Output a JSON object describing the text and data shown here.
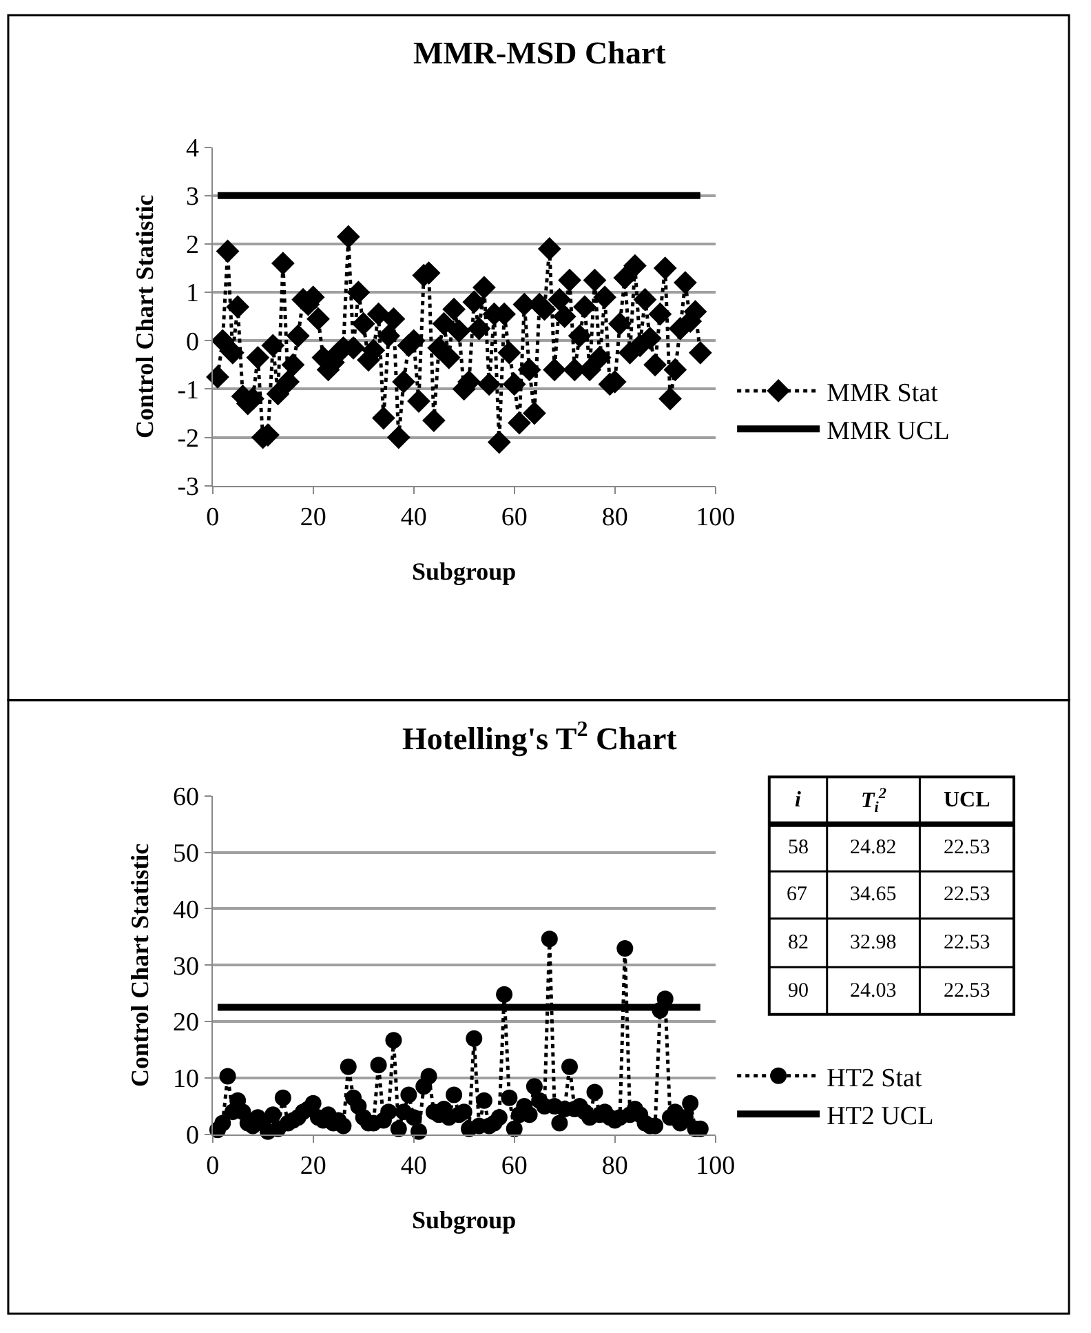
{
  "chart_data": [
    {
      "type": "line",
      "title": "MMR-MSD Chart",
      "xlabel": "Subgroup",
      "ylabel": "Control Chart Statistic",
      "xlim": [
        0,
        100
      ],
      "xticks": [
        0,
        20,
        40,
        60,
        80,
        100
      ],
      "ylim": [
        -3,
        4
      ],
      "yticks": [
        -3,
        -2,
        -1,
        0,
        1,
        2,
        3,
        4
      ],
      "grid": "y",
      "legend": "right",
      "series": [
        {
          "name": "MMR Stat",
          "color": "#000000",
          "marker": "diamond",
          "line_style": "dotted",
          "x": [
            1,
            2,
            3,
            4,
            5,
            6,
            7,
            8,
            9,
            10,
            11,
            12,
            13,
            14,
            15,
            16,
            17,
            18,
            19,
            20,
            21,
            22,
            23,
            24,
            25,
            26,
            27,
            28,
            29,
            30,
            31,
            32,
            33,
            34,
            35,
            36,
            37,
            38,
            39,
            40,
            41,
            42,
            43,
            44,
            45,
            46,
            47,
            48,
            49,
            50,
            51,
            52,
            53,
            54,
            55,
            56,
            57,
            58,
            59,
            60,
            61,
            62,
            63,
            64,
            65,
            66,
            67,
            68,
            69,
            70,
            71,
            72,
            73,
            74,
            75,
            76,
            77,
            78,
            79,
            80,
            81,
            82,
            83,
            84,
            85,
            86,
            87,
            88,
            89,
            90,
            91,
            92,
            93,
            94,
            95,
            96,
            97
          ],
          "values": [
            -0.75,
            0.0,
            1.85,
            -0.25,
            0.7,
            -1.15,
            -1.3,
            -1.2,
            -0.35,
            -2.0,
            -1.95,
            -0.1,
            -1.1,
            1.6,
            -0.85,
            -0.5,
            0.1,
            0.85,
            0.75,
            0.9,
            0.45,
            -0.35,
            -0.6,
            -0.45,
            -0.25,
            -0.15,
            2.15,
            -0.15,
            1.0,
            0.35,
            -0.4,
            -0.2,
            0.55,
            -1.6,
            0.1,
            0.45,
            -2.0,
            -0.85,
            -0.1,
            0.0,
            -1.25,
            1.35,
            1.4,
            -1.65,
            -0.15,
            0.35,
            -0.35,
            0.65,
            0.2,
            -1.0,
            -0.85,
            0.8,
            0.25,
            1.1,
            -0.9,
            0.55,
            -2.1,
            0.55,
            -0.25,
            -0.9,
            -1.7,
            0.75,
            -0.6,
            -1.5,
            0.75,
            0.65,
            1.9,
            -0.6,
            0.85,
            0.5,
            1.25,
            -0.6,
            0.1,
            0.7,
            -0.6,
            1.25,
            -0.35,
            0.9,
            -0.9,
            -0.85,
            0.35,
            1.3,
            -0.25,
            1.55,
            -0.1,
            0.85,
            0.05,
            -0.5,
            0.55,
            1.5,
            -1.2,
            -0.6,
            0.25,
            1.2,
            0.4,
            0.6,
            -0.25
          ]
        },
        {
          "name": "MMR UCL",
          "color": "#000000",
          "marker": "none",
          "line_style": "solid",
          "x": [
            1,
            97
          ],
          "values": [
            3,
            3
          ]
        }
      ]
    },
    {
      "type": "line",
      "title": "Hotelling's T$^{2}$ Chart",
      "xlabel": "Subgroup",
      "ylabel": "Control Chart Statistic",
      "xlim": [
        0,
        100
      ],
      "xticks": [
        0,
        20,
        40,
        60,
        80,
        100
      ],
      "ylim": [
        0,
        60
      ],
      "yticks": [
        0,
        10,
        20,
        30,
        40,
        50,
        60
      ],
      "grid": "y",
      "legend": "right",
      "annotations": [
        "i",
        "T$_{i}$$^{2}$",
        "UCL",
        "58",
        "24.82",
        "22.53",
        "67",
        "34.65",
        "22.53",
        "82",
        "32.98",
        "22.53",
        "90",
        "24.03",
        "22.53"
      ],
      "series": [
        {
          "name": "HT2 Stat",
          "color": "#000000",
          "marker": "circle",
          "line_style": "dotted",
          "x": [
            1,
            2,
            3,
            4,
            5,
            6,
            7,
            8,
            9,
            10,
            11,
            12,
            13,
            14,
            15,
            16,
            17,
            18,
            19,
            20,
            21,
            22,
            23,
            24,
            25,
            26,
            27,
            28,
            29,
            30,
            31,
            32,
            33,
            34,
            35,
            36,
            37,
            38,
            39,
            40,
            41,
            42,
            43,
            44,
            45,
            46,
            47,
            48,
            49,
            50,
            51,
            52,
            53,
            54,
            55,
            56,
            57,
            58,
            59,
            60,
            61,
            62,
            63,
            64,
            65,
            66,
            67,
            68,
            69,
            70,
            71,
            72,
            73,
            74,
            75,
            76,
            77,
            78,
            79,
            80,
            81,
            82,
            83,
            84,
            85,
            86,
            87,
            88,
            89,
            90,
            91,
            92,
            93,
            94,
            95,
            96,
            97
          ],
          "values": [
            0.8,
            2,
            10.3,
            4,
            6,
            4,
            2,
            1.5,
            3,
            2,
            0.5,
            3.5,
            1,
            6.5,
            2,
            2.5,
            3,
            4,
            4.5,
            5.5,
            3,
            2.5,
            3.5,
            2,
            2.5,
            1.5,
            12,
            6.5,
            5,
            3,
            2,
            2,
            12.3,
            2.5,
            4,
            16.7,
            1,
            4,
            7,
            3,
            0.5,
            8.5,
            10.3,
            4,
            3.5,
            4.5,
            3,
            7,
            3.5,
            4,
            1,
            17,
            1.5,
            6,
            1.5,
            2,
            3,
            24.82,
            6.5,
            1,
            3.5,
            5,
            3.5,
            8.5,
            6,
            5,
            34.65,
            5,
            2,
            4.5,
            12,
            4.5,
            5,
            4,
            3,
            7.5,
            3.5,
            4,
            3,
            2.5,
            3,
            32.98,
            3.5,
            4.5,
            3.5,
            2,
            1.5,
            1.5,
            22,
            24.03,
            3,
            4,
            2,
            3,
            5.5,
            1,
            1
          ]
        },
        {
          "name": "HT2 UCL",
          "color": "#000000",
          "marker": "none",
          "line_style": "solid",
          "x": [
            1,
            97
          ],
          "values": [
            22.53,
            22.53
          ]
        }
      ]
    }
  ]
}
